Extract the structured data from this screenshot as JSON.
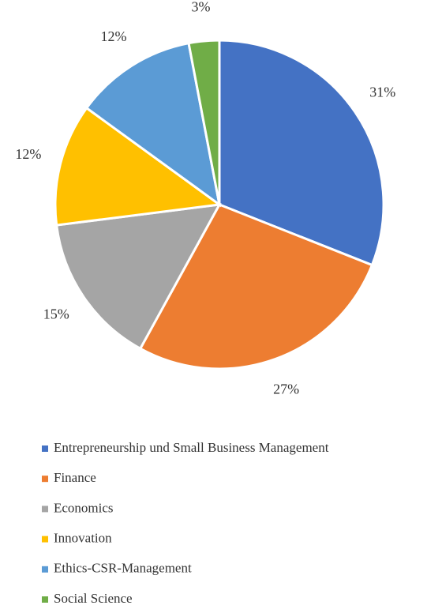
{
  "chart_data": {
    "type": "pie",
    "categories": [
      "Entrepreneurship und Small Business Management",
      "Finance",
      "Economics",
      "Innovation",
      "Ethics-CSR-Management",
      "Social Science"
    ],
    "values": [
      31,
      27,
      15,
      12,
      12,
      3
    ],
    "value_labels": [
      "31%",
      "27%",
      "15%",
      "12%",
      "12%",
      "3%"
    ],
    "colors": [
      "#4472c4",
      "#ed7d31",
      "#a5a5a5",
      "#ffc000",
      "#5b9bd5",
      "#70ad47"
    ],
    "legend": "bottom"
  }
}
